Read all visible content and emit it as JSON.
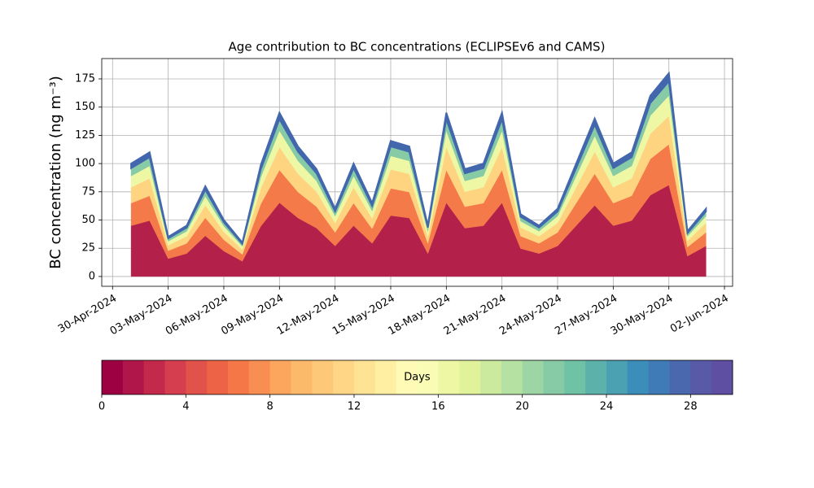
{
  "chart_data": {
    "type": "area",
    "stacked": true,
    "title": "Age contribution to BC concentrations (ECLIPSEv6 and CAMS)",
    "y_label": "BC concentration (ng m⁻³)",
    "grid": true,
    "x": [
      "2024-05-01",
      "2024-05-02",
      "2024-05-03",
      "2024-05-04",
      "2024-05-05",
      "2024-05-06",
      "2024-05-07",
      "2024-05-08",
      "2024-05-09",
      "2024-05-10",
      "2024-05-11",
      "2024-05-12",
      "2024-05-13",
      "2024-05-14",
      "2024-05-15",
      "2024-05-16",
      "2024-05-17",
      "2024-05-18",
      "2024-05-19",
      "2024-05-20",
      "2024-05-21",
      "2024-05-22",
      "2024-05-23",
      "2024-05-24",
      "2024-05-25",
      "2024-05-26",
      "2024-05-27",
      "2024-05-28",
      "2024-05-29",
      "2024-05-30",
      "2024-05-31",
      "2024-06-01"
    ],
    "xlim": [
      "2024-04-29T10:00",
      "2024-06-02T10:30"
    ],
    "xticks": [
      {
        "value": "2024-04-30",
        "label": "30-Apr-2024"
      },
      {
        "value": "2024-05-03",
        "label": "03-May-2024"
      },
      {
        "value": "2024-05-06",
        "label": "06-May-2024"
      },
      {
        "value": "2024-05-09",
        "label": "09-May-2024"
      },
      {
        "value": "2024-05-12",
        "label": "12-May-2024"
      },
      {
        "value": "2024-05-15",
        "label": "15-May-2024"
      },
      {
        "value": "2024-05-18",
        "label": "18-May-2024"
      },
      {
        "value": "2024-05-21",
        "label": "21-May-2024"
      },
      {
        "value": "2024-05-24",
        "label": "24-May-2024"
      },
      {
        "value": "2024-05-27",
        "label": "27-May-2024"
      },
      {
        "value": "2024-05-30",
        "label": "30-May-2024"
      },
      {
        "value": "2024-06-02",
        "label": "02-Jun-2024"
      }
    ],
    "ylim": [
      -8.7,
      193
    ],
    "yticks": [
      0,
      25,
      50,
      75,
      100,
      125,
      150,
      175
    ],
    "series": [
      {
        "color": "#b3204a",
        "values": [
          45,
          49.5,
          15.8,
          20.3,
          36,
          22.5,
          13.5,
          44.6,
          65.3,
          51.8,
          42.8,
          27,
          45,
          29.3,
          54,
          51.8,
          20.3,
          65.3,
          42.8,
          45,
          65.3,
          24.8,
          20.3,
          27,
          45,
          63,
          45,
          49.5,
          72,
          81,
          18,
          27
        ]
      },
      {
        "color": "#f47a4a",
        "values": [
          20,
          22,
          7,
          9,
          16,
          10,
          6,
          19.8,
          29,
          23,
          19,
          12,
          20,
          13,
          24,
          23,
          9,
          29,
          19,
          20,
          29,
          11,
          9,
          12,
          20,
          28,
          20,
          22,
          32,
          36,
          8,
          12
        ]
      },
      {
        "color": "#fed481",
        "values": [
          14,
          15.4,
          4.9,
          6.3,
          11.2,
          7,
          4.2,
          13.9,
          20.3,
          16.1,
          13.3,
          8.4,
          14,
          9.1,
          16.8,
          16.1,
          6.3,
          20.3,
          13.3,
          14,
          20.3,
          7.7,
          6.3,
          8.4,
          14,
          19.6,
          14,
          15.4,
          22.4,
          25.2,
          5.6,
          8.4
        ]
      },
      {
        "color": "#eef8a4",
        "values": [
          10,
          11,
          3.5,
          4.5,
          8,
          5,
          3,
          9.9,
          14.5,
          11.5,
          9.5,
          6,
          10,
          6.5,
          12,
          11.5,
          4.5,
          14.5,
          9.5,
          10,
          14.5,
          5.5,
          4.5,
          6,
          10,
          14,
          10,
          11,
          16,
          18,
          4,
          6
        ]
      },
      {
        "color": "#86cba5",
        "values": [
          7,
          7.7,
          2.5,
          3.2,
          5.6,
          3.5,
          2.1,
          6.9,
          10.2,
          8.1,
          6.7,
          4.2,
          7,
          4.6,
          8.4,
          8.1,
          3.2,
          10.2,
          6.7,
          7,
          10.2,
          3.9,
          3.2,
          4.2,
          7,
          9.8,
          7,
          7.7,
          11.2,
          12.6,
          2.8,
          4.2
        ]
      },
      {
        "color": "#4367ad",
        "values": [
          4,
          4.4,
          1.4,
          1.8,
          3.2,
          2,
          1.2,
          4,
          5.8,
          4.6,
          3.8,
          2.4,
          4,
          2.6,
          4.8,
          4.6,
          1.8,
          5.8,
          3.8,
          4,
          5.8,
          2.2,
          1.8,
          2.4,
          4,
          5.6,
          4,
          4.4,
          6.4,
          7.2,
          1.6,
          2.4
        ]
      }
    ],
    "colorbar": {
      "label": "Days",
      "lim": [
        0,
        30
      ],
      "ticks": [
        0,
        4,
        8,
        12,
        16,
        20,
        24,
        28
      ],
      "colors": [
        "#9e0142",
        "#b0164a",
        "#c2294a",
        "#d53e4f",
        "#e1524a",
        "#ec6445",
        "#f57748",
        "#f98e52",
        "#fca55d",
        "#fdb96a",
        "#fdc877",
        "#fed686",
        "#fee394",
        "#ffefa3",
        "#fffbb6",
        "#f9fcb5",
        "#eef8a4",
        "#e0f39a",
        "#ccea9d",
        "#b5e1a2",
        "#9dd6a4",
        "#86cba5",
        "#70c2a5",
        "#5cb1aa",
        "#4ba0b1",
        "#3b8dba",
        "#3f7bb6",
        "#4a68ad",
        "#5859a7",
        "#5e4fa2"
      ]
    }
  }
}
